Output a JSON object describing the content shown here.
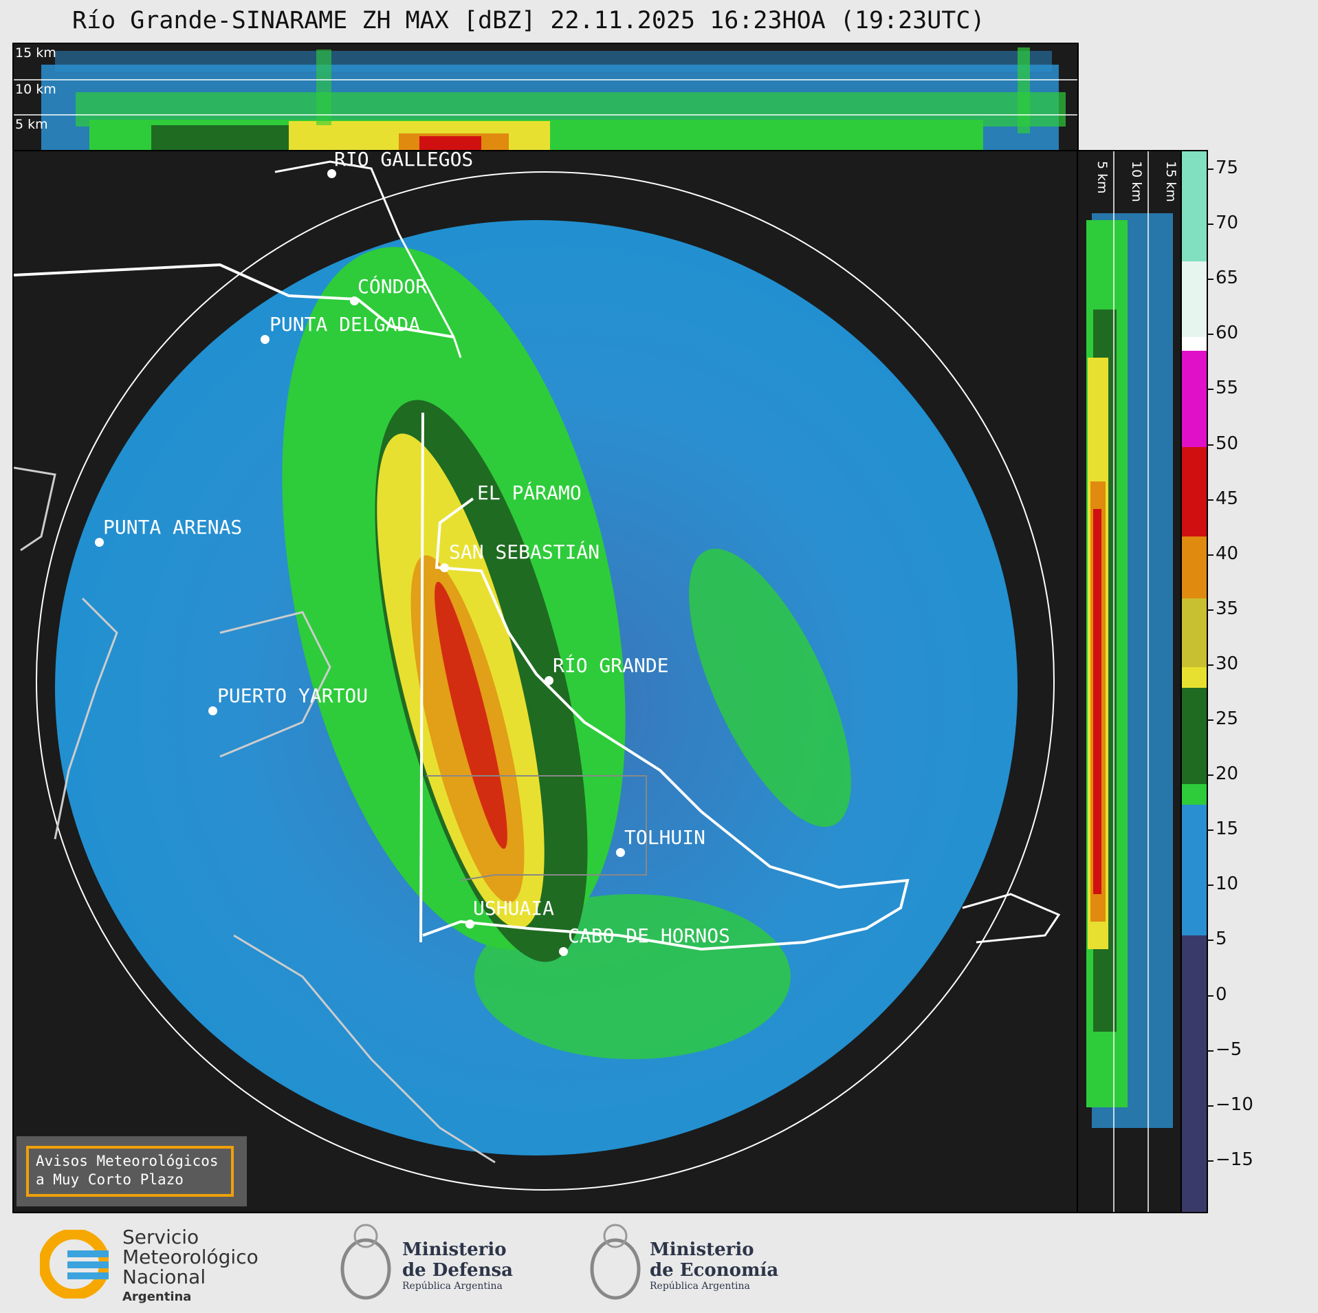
{
  "title": "Río Grande-SINARAME ZH MAX [dBZ] 22.11.2025 16:23HOA (19:23UTC)",
  "height_levels": [
    "15 km",
    "10 km",
    "5 km"
  ],
  "side_levels": [
    "5 km",
    "10 km",
    "15 km"
  ],
  "cities": [
    {
      "name": "RÍO GALLEGOS"
    },
    {
      "name": "CÓNDOR"
    },
    {
      "name": "PUNTA DELGADA"
    },
    {
      "name": "EL PÁRAMO"
    },
    {
      "name": "PUNTA ARENAS"
    },
    {
      "name": "SAN SEBASTIÁN"
    },
    {
      "name": "RÍO GRANDE"
    },
    {
      "name": "PUERTO YARTOU"
    },
    {
      "name": "TOLHUIN"
    },
    {
      "name": "USHUAIA"
    },
    {
      "name": "CABO DE HORNOS"
    }
  ],
  "colorbar": {
    "ticks": [
      "75",
      "70",
      "65",
      "60",
      "55",
      "50",
      "45",
      "40",
      "35",
      "30",
      "25",
      "20",
      "15",
      "10",
      "5",
      "0",
      "−5",
      "−10",
      "−15"
    ],
    "colors": {
      "low": "#3a3a6a",
      "blue": "#2a8fd0",
      "green": "#2ecc3a",
      "darkgreen": "#1f6b22",
      "yellow": "#e8e030",
      "orange": "#e08a10",
      "red": "#d01010",
      "magenta": "#e010c8",
      "white": "#ffffff",
      "mint": "#80e0c0"
    }
  },
  "legend": {
    "line1": "Avisos Meteorológicos",
    "line2": "a Muy Corto Plazo"
  },
  "logos": {
    "smn": {
      "line1": "Servicio",
      "line2": "Meteorológico",
      "line3": "Nacional",
      "line4": "Argentina"
    },
    "defensa": {
      "line1": "Ministerio",
      "line2": "de Defensa",
      "line3": "República Argentina"
    },
    "economia": {
      "line1": "Ministerio",
      "line2": "de Economía",
      "line3": "República Argentina"
    }
  }
}
